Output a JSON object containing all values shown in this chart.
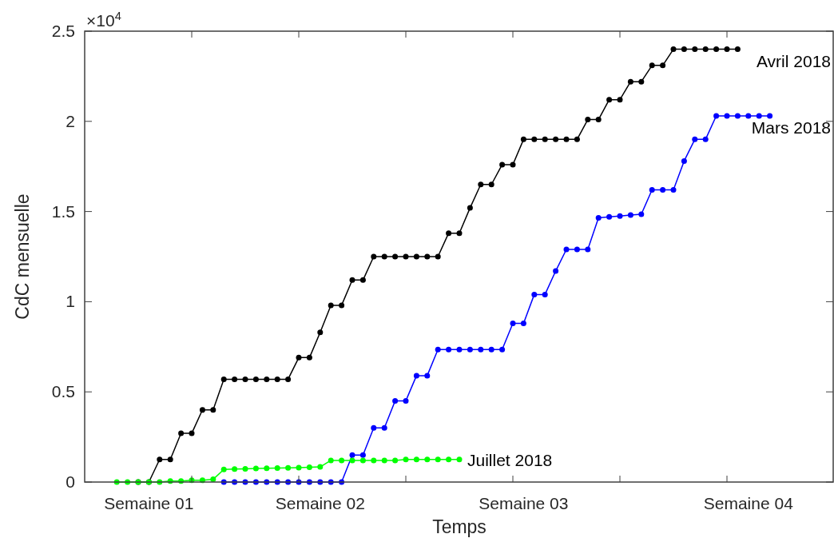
{
  "chart_data": {
    "type": "line",
    "xlabel": "Temps",
    "ylabel": "CdC mensuelle",
    "ylim": [
      0,
      2.5
    ],
    "yticks": [
      0,
      0.5,
      1,
      1.5,
      2,
      2.5
    ],
    "categories": [
      null,
      null,
      null,
      null,
      null,
      null,
      "Semaine 01",
      null,
      null,
      null,
      null,
      null,
      null,
      null,
      null,
      null,
      null,
      null,
      null,
      null,
      null,
      null,
      "Semaine 02",
      null,
      null,
      null,
      null,
      null,
      null,
      null,
      null,
      null,
      null,
      null,
      null,
      null,
      null,
      null,
      null,
      null,
      null,
      "Semaine 03",
      null,
      null,
      null,
      null,
      null,
      null,
      null,
      null,
      null,
      null,
      null,
      null,
      null,
      null,
      null,
      null,
      null,
      null,
      null,
      null,
      "Semaine 04",
      null,
      null,
      null,
      null,
      null,
      null,
      null,
      null
    ],
    "annotations": [
      "×10$^{4}$"
    ],
    "marker": "circle",
    "line_style": "solid",
    "series": [
      {
        "name": "Avril 2018",
        "color": "#000000",
        "values": [
          null,
          null,
          null,
          null,
          null,
          0,
          0,
          0.125,
          0.125,
          0.27,
          0.27,
          0.4,
          0.4,
          0.57,
          0.57,
          0.57,
          0.57,
          0.57,
          0.57,
          0.57,
          0.69,
          0.69,
          0.83,
          0.98,
          0.98,
          1.12,
          1.12,
          1.25,
          1.25,
          1.25,
          1.25,
          1.25,
          1.25,
          1.25,
          1.38,
          1.38,
          1.52,
          1.65,
          1.65,
          1.76,
          1.76,
          1.9,
          1.9,
          1.9,
          1.9,
          1.9,
          1.9,
          2.01,
          2.01,
          2.12,
          2.12,
          2.22,
          2.22,
          2.31,
          2.31,
          2.4,
          2.4,
          2.4,
          2.4,
          2.4,
          2.4,
          2.4,
          null,
          null,
          null,
          null,
          null,
          null,
          null,
          null,
          null
        ]
      },
      {
        "name": "Mars 2018",
        "color": "#0000ff",
        "values": [
          null,
          null,
          null,
          null,
          null,
          null,
          null,
          null,
          null,
          null,
          null,
          null,
          null,
          0,
          0,
          0,
          0,
          0,
          0,
          0,
          0,
          0,
          0,
          0,
          0,
          0.15,
          0.15,
          0.3,
          0.3,
          0.45,
          0.45,
          0.59,
          0.59,
          0.735,
          0.735,
          0.735,
          0.735,
          0.735,
          0.735,
          0.735,
          0.88,
          0.88,
          1.04,
          1.04,
          1.17,
          1.29,
          1.29,
          1.29,
          1.465,
          1.47,
          1.475,
          1.48,
          1.485,
          1.62,
          1.62,
          1.62,
          1.78,
          1.9,
          1.9,
          2.03,
          2.03,
          2.03,
          2.03,
          2.03,
          2.03,
          null,
          null,
          null,
          null,
          null,
          null
        ]
      },
      {
        "name": "Juillet 2018",
        "color": "#00ff00",
        "values": [
          null,
          null,
          null,
          0,
          0,
          0,
          0,
          0,
          0.005,
          0.005,
          0.01,
          0.01,
          0.015,
          0.07,
          0.072,
          0.073,
          0.075,
          0.076,
          0.078,
          0.079,
          0.08,
          0.082,
          0.084,
          0.12,
          0.12,
          0.12,
          0.12,
          0.12,
          0.12,
          0.12,
          0.125,
          0.125,
          0.125,
          0.125,
          0.125,
          0.125,
          null,
          null,
          null,
          null,
          null,
          null,
          null,
          null,
          null,
          null,
          null,
          null,
          null,
          null,
          null,
          null,
          null,
          null,
          null,
          null,
          null,
          null,
          null,
          null,
          null,
          null,
          null,
          null,
          null,
          null,
          null,
          null,
          null,
          null,
          null
        ]
      }
    ]
  }
}
